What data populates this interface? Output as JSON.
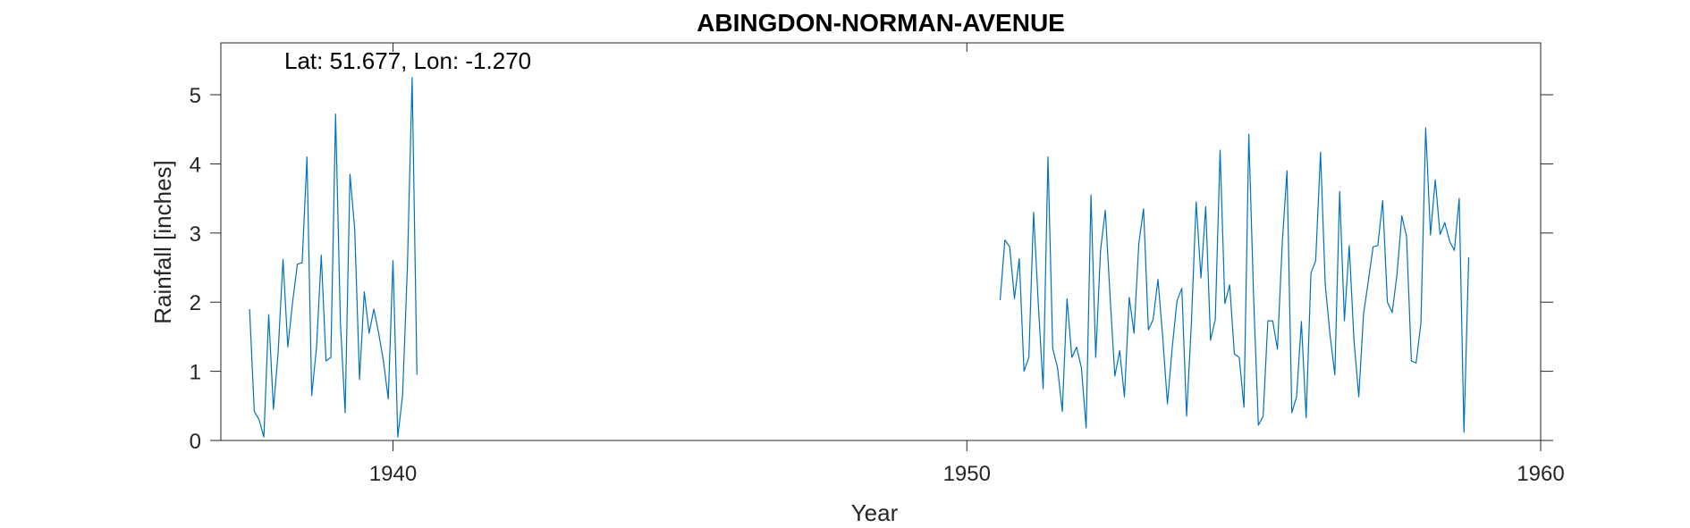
{
  "chart_data": {
    "type": "line",
    "title": "ABINGDON-NORMAN-AVENUE",
    "xlabel": "Year",
    "ylabel": "Rainfall [inches]",
    "annotation": "Lat: 51.677, Lon: -1.270",
    "xlim": [
      1937,
      1960
    ],
    "ylim": [
      0,
      5.75
    ],
    "xticks": [
      1940,
      1950,
      1960
    ],
    "yticks": [
      0,
      1,
      2,
      3,
      4,
      5
    ],
    "grid": false,
    "line_color": "#0072BD",
    "series": [
      {
        "x_start": 1937.5,
        "x_step": 0.08333,
        "values": [
          1.9,
          0.42,
          0.3,
          0.05,
          1.82,
          0.45,
          1.3,
          2.62,
          1.35,
          2.0,
          2.55,
          2.57,
          4.1,
          0.65,
          1.35,
          2.68,
          1.15,
          1.2,
          4.72,
          1.7,
          0.4,
          3.85,
          3.05,
          0.88,
          2.15,
          1.55,
          1.9,
          1.55,
          1.15,
          0.6,
          2.6,
          0.05,
          0.65,
          2.5,
          5.25,
          0.95
        ]
      },
      {
        "x_start": 1950.58,
        "x_step": 0.08333,
        "values": [
          2.03,
          2.9,
          2.8,
          2.05,
          2.63,
          1.0,
          1.2,
          3.3,
          1.95,
          0.75,
          4.1,
          1.33,
          1.05,
          0.42,
          2.05,
          1.2,
          1.35,
          1.05,
          0.18,
          3.55,
          1.2,
          2.75,
          3.33,
          2.07,
          0.93,
          1.3,
          0.63,
          2.07,
          1.55,
          2.85,
          3.35,
          1.6,
          1.75,
          2.33,
          1.5,
          0.53,
          1.35,
          2.02,
          2.2,
          0.35,
          1.7,
          3.45,
          2.35,
          3.38,
          1.45,
          1.75,
          4.2,
          1.98,
          2.25,
          1.25,
          1.2,
          0.48,
          4.43,
          2.1,
          0.22,
          0.35,
          1.73,
          1.73,
          1.32,
          2.85,
          3.9,
          0.4,
          0.63,
          1.72,
          0.33,
          2.42,
          2.6,
          4.17,
          2.25,
          1.52,
          0.95,
          3.6,
          1.73,
          2.82,
          1.45,
          0.63,
          1.83,
          2.3,
          2.8,
          2.82,
          3.47,
          2.0,
          1.85,
          2.4,
          3.25,
          2.95,
          1.15,
          1.12,
          1.7,
          4.52,
          2.97,
          3.77,
          2.98,
          3.15,
          2.88,
          2.75,
          3.5,
          0.12,
          2.65
        ]
      }
    ]
  }
}
